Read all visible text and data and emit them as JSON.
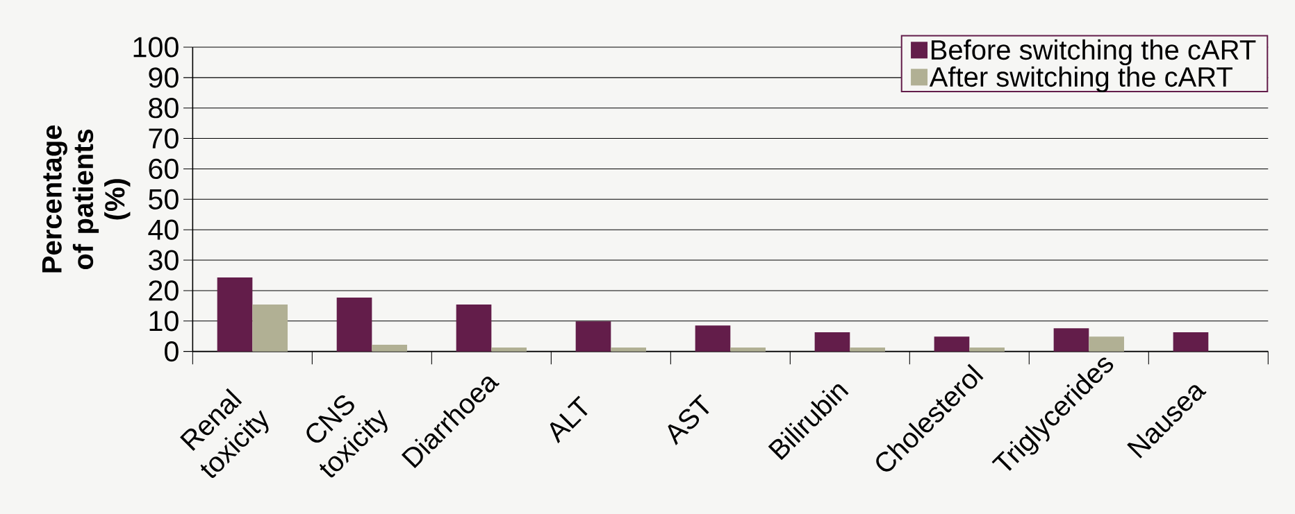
{
  "chart_data": {
    "type": "bar",
    "ylabel": "Percentage of patients (%)",
    "categories": [
      "Renal toxicity",
      "CNS toxicity",
      "Diarrhoea",
      "ALT",
      "AST",
      "Bilirubin",
      "Cholesterol",
      "Triglycerides",
      "Nausea"
    ],
    "series": [
      {
        "name": "Before switching the cART",
        "color": "#631d4a",
        "values": [
          24.3,
          17.7,
          15.4,
          9.9,
          8.5,
          6.3,
          4.9,
          7.6,
          6.3
        ]
      },
      {
        "name": "After switching the cART",
        "color": "#b1b094",
        "values": [
          15.4,
          2.2,
          1.3,
          1.3,
          1.3,
          1.3,
          1.3,
          4.9,
          null
        ]
      }
    ],
    "ylim": [
      0,
      100
    ],
    "yticks": [
      0,
      10,
      20,
      30,
      40,
      50,
      60,
      70,
      80,
      90,
      100
    ],
    "grid": "y",
    "legend": "top right"
  }
}
